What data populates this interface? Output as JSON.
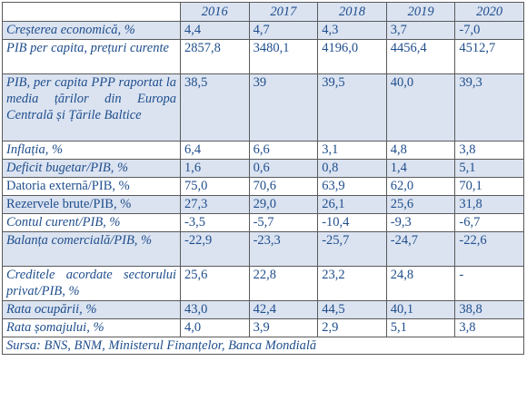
{
  "table": {
    "years": [
      "2016",
      "2017",
      "2018",
      "2019",
      "2020"
    ],
    "rows": [
      {
        "label": "Creșterea economică, %",
        "italic": true,
        "shaded": true,
        "values": [
          "4,4",
          "4,7",
          "4,3",
          "3,7",
          "-7,0"
        ]
      },
      {
        "label": "PIB per capita, prețuri curente",
        "italic": true,
        "shaded": false,
        "values": [
          "2857,8",
          "3480,1",
          "4196,0",
          "4456,4",
          "4512,7"
        ]
      },
      {
        "label": "PIB, per capita PPP raportat la media țărilor din Europa Centrală și Țările Baltice",
        "italic": true,
        "shaded": true,
        "values": [
          "38,5",
          "39",
          "39,5",
          "40,0",
          "39,3"
        ]
      },
      {
        "label": "Inflația, %",
        "italic": true,
        "shaded": false,
        "values": [
          "6,4",
          "6,6",
          "3,1",
          "4,8",
          "3,8"
        ]
      },
      {
        "label": "Deficit bugetar/PIB, %",
        "italic": true,
        "shaded": true,
        "values": [
          "1,6",
          "0,6",
          "0,8",
          "1,4",
          "5,1"
        ]
      },
      {
        "label": "Datoria externă/PIB, %",
        "italic": false,
        "shaded": false,
        "values": [
          "75,0",
          "70,6",
          "63,9",
          "62,0",
          "70,1"
        ]
      },
      {
        "label": "Rezervele brute/PIB, %",
        "italic": false,
        "shaded": true,
        "values": [
          "27,3",
          "29,0",
          "26,1",
          "25,6",
          "31,8"
        ]
      },
      {
        "label": "Contul curent/PIB, %",
        "italic": true,
        "shaded": false,
        "values": [
          "-3,5",
          "-5,7",
          "-10,4",
          "-9,3",
          "-6,7"
        ]
      },
      {
        "label": "Balanța comercială/PIB, %",
        "italic": true,
        "shaded": true,
        "values": [
          "-22,9",
          "-23,3",
          "-25,7",
          "-24,7",
          "-22,6"
        ]
      },
      {
        "label": "Creditele acordate sectorului privat/PIB, %",
        "italic": true,
        "shaded": false,
        "values": [
          "25,6",
          "22,8",
          "23,2",
          "24,8",
          "-"
        ]
      },
      {
        "label": "Rata ocupării, %",
        "italic": true,
        "shaded": true,
        "values": [
          "43,0",
          "42,4",
          "44,5",
          "40,1",
          "38,8"
        ]
      },
      {
        "label": "Rata șomajului, %",
        "italic": true,
        "shaded": false,
        "values": [
          "4,0",
          "3,9",
          "2,9",
          "5,1",
          "3,8"
        ]
      }
    ],
    "source": "Sursa: BNS, BNM, Ministerul Finanțelor, Banca Mondială"
  },
  "colors": {
    "text": "#1f4e8c",
    "shade": "#dbe3f1",
    "border": "#5a5a5a"
  }
}
